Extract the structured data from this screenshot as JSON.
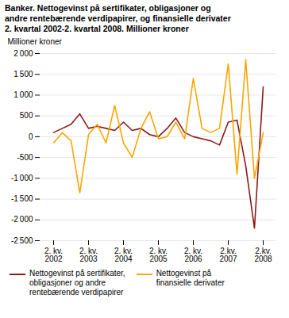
{
  "chart_data": {
    "type": "line",
    "title": "Banker. Nettogevinst på sertifikater, obligasjoner og\nandre rentebærende verdipapirer, og finansielle derivater\n2. kvartal 2002-2. kvartal 2008. Millioner kroner",
    "y_label": "Millioner kroner",
    "categories": [
      "2. kv.\n2002",
      null,
      null,
      null,
      "2. kv.\n2003",
      null,
      null,
      null,
      "2. kv.\n2004",
      null,
      null,
      null,
      "2. kv.\n2005",
      null,
      null,
      null,
      "2. kv.\n2006",
      null,
      null,
      null,
      "2.kv.\n2007",
      null,
      null,
      null,
      "2.kv.\n2008"
    ],
    "series": [
      {
        "name": "Nettogevinst på sertifikater,\nobligasjoner og andre\nrentebærende verdipapirer",
        "color": "#8B1A1A",
        "values": [
          100,
          200,
          300,
          550,
          200,
          250,
          200,
          150,
          350,
          150,
          200,
          50,
          0,
          200,
          450,
          100,
          0,
          -50,
          -100,
          -200,
          350,
          400,
          -700,
          -2200,
          1200
        ]
      },
      {
        "name": "Nettogevinst på\nfinansielle derivater",
        "color": "#FFA500",
        "values": [
          -150,
          100,
          -100,
          -1350,
          50,
          300,
          -150,
          750,
          -150,
          -500,
          200,
          600,
          -50,
          0,
          350,
          -50,
          1400,
          200,
          100,
          200,
          1750,
          -900,
          1850,
          -1000,
          100
        ]
      }
    ],
    "ylim": [
      -2500,
      2000
    ],
    "yticks": [
      {
        "value": -2500,
        "label": "-2 500"
      },
      {
        "value": -2000,
        "label": "-2 000"
      },
      {
        "value": -1500,
        "label": "-1 500"
      },
      {
        "value": -1000,
        "label": "-1 000"
      },
      -500,
      0,
      500,
      {
        "value": 1000,
        "label": "1 000"
      },
      {
        "value": 1500,
        "label": "1 500"
      },
      {
        "value": 2000,
        "label": "2 000"
      }
    ],
    "grid": true,
    "legend": "bottom"
  }
}
